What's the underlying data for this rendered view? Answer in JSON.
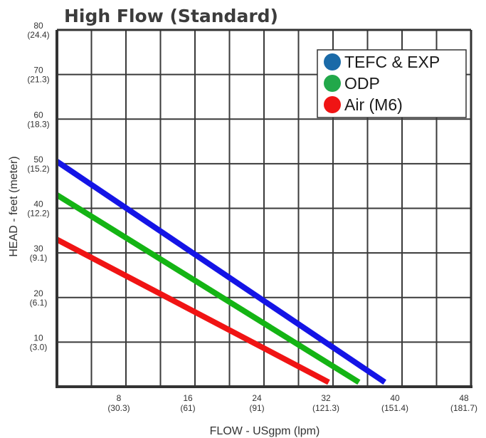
{
  "chart_data": {
    "type": "line",
    "title": "High Flow (Standard)",
    "xlabel": "FLOW - USgpm (lpm)",
    "ylabel": "HEAD - feet (meter)",
    "xlim": [
      0,
      48
    ],
    "ylim": [
      0,
      80
    ],
    "grid": true,
    "legend_position": "top-right",
    "x_ticks": [
      {
        "value": 8,
        "label": "8",
        "sub": "(30.3)"
      },
      {
        "value": 16,
        "label": "16",
        "sub": "(61)"
      },
      {
        "value": 24,
        "label": "24",
        "sub": "(91)"
      },
      {
        "value": 32,
        "label": "32",
        "sub": "(121.3)"
      },
      {
        "value": 40,
        "label": "40",
        "sub": "(151.4)"
      },
      {
        "value": 48,
        "label": "48",
        "sub": "(181.7)"
      }
    ],
    "y_ticks": [
      {
        "value": 10,
        "label": "10",
        "sub": "(3.0)"
      },
      {
        "value": 20,
        "label": "20",
        "sub": "(6.1)"
      },
      {
        "value": 30,
        "label": "30",
        "sub": "(9.1)"
      },
      {
        "value": 40,
        "label": "40",
        "sub": "(12.2)"
      },
      {
        "value": 50,
        "label": "50",
        "sub": "(15.2)"
      },
      {
        "value": 60,
        "label": "60",
        "sub": "(18.3)"
      },
      {
        "value": 70,
        "label": "70",
        "sub": "(21.3)"
      },
      {
        "value": 80,
        "label": "80",
        "sub": "(24.4)"
      }
    ],
    "series": [
      {
        "name": "TEFC & EXP",
        "color": "#1414e6",
        "legend_color": "#1a6aa8",
        "x": [
          0,
          38
        ],
        "y": [
          50.5,
          1
        ]
      },
      {
        "name": "ODP",
        "color": "#14b414",
        "legend_color": "#22a84a",
        "x": [
          0,
          35
        ],
        "y": [
          43,
          1
        ]
      },
      {
        "name": "Air (M6)",
        "color": "#f01414",
        "legend_color": "#f01414",
        "x": [
          0,
          31.5
        ],
        "y": [
          33,
          1
        ]
      }
    ]
  }
}
